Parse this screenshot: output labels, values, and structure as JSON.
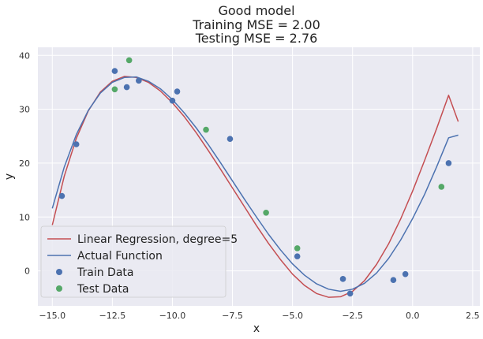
{
  "chart_data": {
    "type": "line",
    "title_lines": [
      "Good model",
      "Training MSE = 2.00",
      "Testing MSE = 2.76"
    ],
    "xlabel": "x",
    "ylabel": "y",
    "xlim": [
      -15.6,
      2.8
    ],
    "ylim": [
      -6.5,
      41.5
    ],
    "x_ticks": [
      -15.0,
      -12.5,
      -10.0,
      -7.5,
      -5.0,
      -2.5,
      0.0,
      2.5
    ],
    "x_tick_labels": [
      "−15.0",
      "−12.5",
      "−10.0",
      "−7.5",
      "−5.0",
      "−2.5",
      "0.0",
      "2.5"
    ],
    "y_ticks": [
      0,
      10,
      20,
      30,
      40
    ],
    "y_tick_labels": [
      "0",
      "10",
      "20",
      "30",
      "40"
    ],
    "grid": true,
    "legend_position": "lower-left",
    "colors": {
      "background": "#eaeaf2",
      "grid": "#ffffff",
      "regression": "#c44e52",
      "actual": "#4c72b0",
      "train": "#4c72b0",
      "test": "#55a868"
    },
    "series": [
      {
        "name": "Linear Regression, degree=5",
        "kind": "line",
        "x": [
          -15.0,
          -14.5,
          -14.0,
          -13.5,
          -13.0,
          -12.5,
          -12.0,
          -11.5,
          -11.0,
          -10.5,
          -10.0,
          -9.5,
          -9.0,
          -8.5,
          -8.0,
          -7.5,
          -7.0,
          -6.5,
          -6.0,
          -5.5,
          -5.0,
          -4.5,
          -4.0,
          -3.5,
          -3.0,
          -2.5,
          -2.0,
          -1.5,
          -1.0,
          -0.5,
          0.0,
          0.5,
          1.0,
          1.5,
          1.9
        ],
        "y": [
          8.5,
          17.6,
          24.6,
          29.7,
          33.2,
          35.2,
          36.1,
          35.9,
          35.0,
          33.4,
          31.2,
          28.6,
          25.6,
          22.3,
          18.9,
          15.4,
          11.9,
          8.4,
          5.1,
          2.1,
          -0.6,
          -2.7,
          -4.2,
          -4.9,
          -4.8,
          -3.8,
          -1.8,
          1.2,
          5.0,
          9.6,
          14.8,
          20.5,
          26.4,
          32.6,
          27.7
        ]
      },
      {
        "name": "Actual Function",
        "kind": "line",
        "x": [
          -15.0,
          -14.5,
          -14.0,
          -13.5,
          -13.0,
          -12.5,
          -12.0,
          -11.5,
          -11.0,
          -10.5,
          -10.0,
          -9.5,
          -9.0,
          -8.5,
          -8.0,
          -7.5,
          -7.0,
          -6.5,
          -6.0,
          -5.5,
          -5.0,
          -4.5,
          -4.0,
          -3.5,
          -3.0,
          -2.5,
          -2.0,
          -1.5,
          -1.0,
          -0.5,
          0.0,
          0.5,
          1.0,
          1.5,
          1.9
        ],
        "y": [
          11.6,
          19.3,
          25.3,
          29.8,
          33.0,
          35.0,
          35.9,
          36.0,
          35.2,
          33.8,
          31.8,
          29.3,
          26.5,
          23.4,
          20.1,
          16.7,
          13.3,
          10.0,
          6.8,
          3.9,
          1.3,
          -0.8,
          -2.4,
          -3.4,
          -3.8,
          -3.4,
          -2.3,
          -0.4,
          2.3,
          5.7,
          9.7,
          14.2,
          19.3,
          24.7,
          25.2
        ]
      },
      {
        "name": "Train Data",
        "kind": "scatter",
        "x": [
          -14.6,
          -14.0,
          -12.4,
          -11.9,
          -11.4,
          -10.0,
          -9.8,
          -7.6,
          -4.8,
          -2.9,
          -2.6,
          -0.8,
          -0.3,
          1.5
        ],
        "y": [
          13.9,
          23.5,
          37.1,
          34.1,
          35.3,
          31.6,
          33.3,
          24.5,
          2.7,
          -1.5,
          -4.2,
          -1.7,
          -0.6,
          20.0
        ]
      },
      {
        "name": "Test Data",
        "kind": "scatter",
        "x": [
          -12.4,
          -11.8,
          -8.6,
          -6.1,
          -4.8,
          1.2
        ],
        "y": [
          33.7,
          39.1,
          26.2,
          10.8,
          4.2,
          15.6
        ]
      }
    ]
  }
}
